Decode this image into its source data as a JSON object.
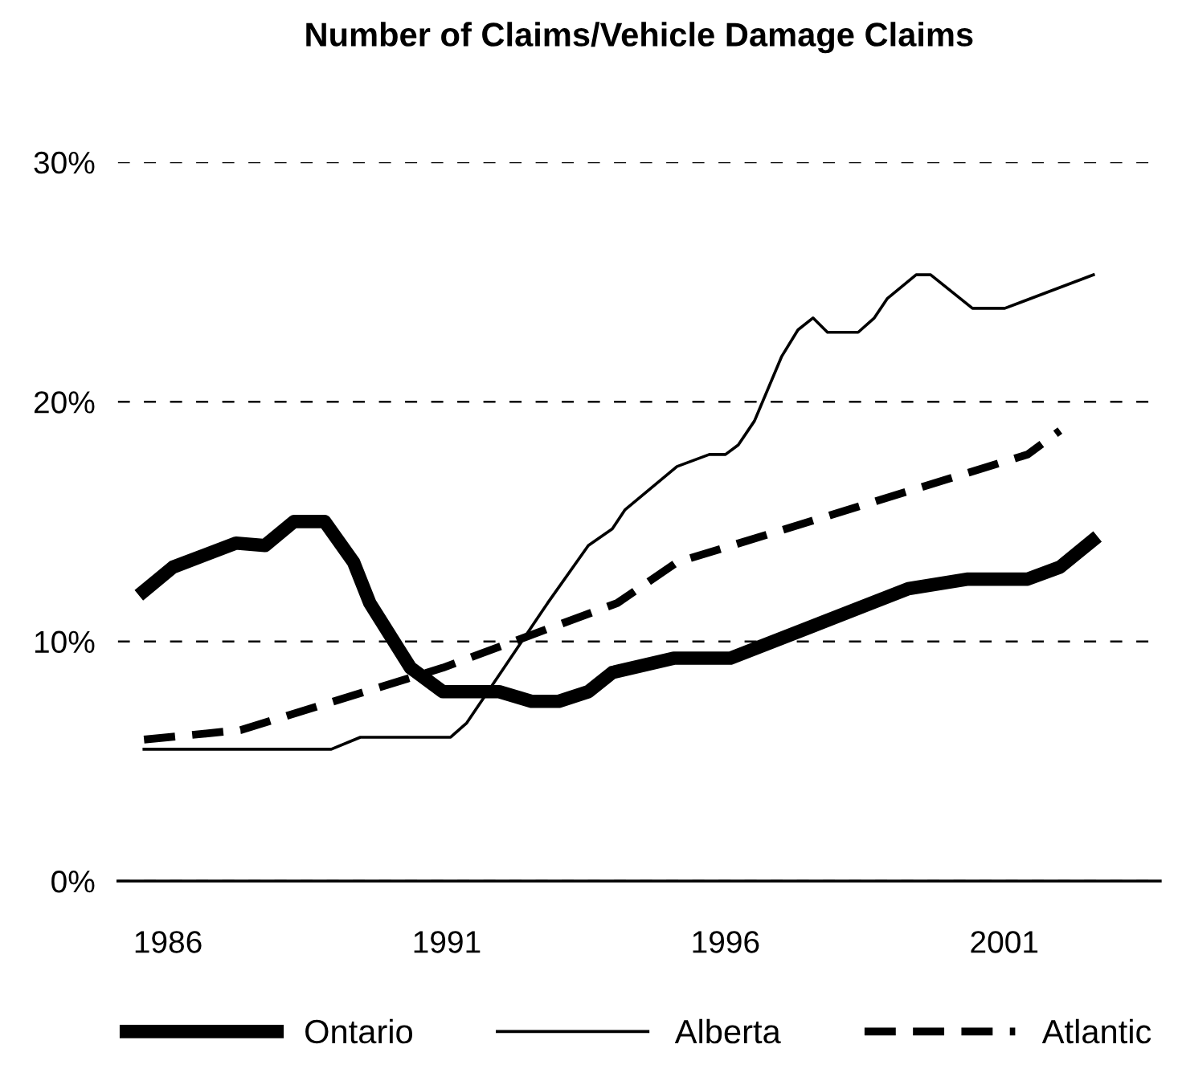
{
  "chart_data": {
    "type": "line",
    "title": "Number of Claims/Vehicle Damage Claims",
    "xlim": [
      1985.1,
      2003.8
    ],
    "xticks": [
      1986,
      1991,
      1996,
      2001
    ],
    "ylim": [
      0,
      30
    ],
    "yticks": [
      {
        "value": 0,
        "label": "0%"
      },
      {
        "value": 10,
        "label": "10%"
      },
      {
        "value": 20,
        "label": "20%"
      },
      {
        "value": 30,
        "label": "30%"
      }
    ],
    "grid": "y",
    "legend": "bottom",
    "series": [
      {
        "name": "Ontario",
        "color": "#000000",
        "line_style": "solid",
        "x": [
          1985.57,
          1986.09,
          1987.22,
          1987.74,
          1988.26,
          1988.81,
          1989.33,
          1989.62,
          1990.35,
          1990.93,
          1991.94,
          1992.52,
          1993.01,
          1993.54,
          1993.97,
          1995.07,
          1996.09,
          1999.28,
          2000.35,
          2001.42,
          2002.0,
          2002.58
        ],
        "values": [
          12.1,
          13.1,
          14.1,
          14.0,
          15.0,
          15.0,
          13.3,
          11.6,
          8.9,
          7.9,
          7.9,
          7.5,
          7.5,
          7.9,
          8.7,
          9.3,
          9.3,
          12.2,
          12.6,
          12.6,
          13.1,
          14.2
        ]
      },
      {
        "name": "Alberta",
        "color": "#000000",
        "line_style": "solid",
        "x": [
          1985.57,
          1988.93,
          1989.45,
          1991.07,
          1991.36,
          1991.94,
          1992.81,
          1993.54,
          1993.97,
          1994.2,
          1995.13,
          1995.71,
          1996.0,
          1996.23,
          1996.52,
          1997.01,
          1997.3,
          1997.57,
          1997.83,
          1998.38,
          1998.67,
          1998.9,
          1999.42,
          1999.68,
          2000.43,
          2001.01,
          2002.6
        ],
        "values": [
          5.5,
          5.5,
          6.0,
          6.0,
          6.6,
          8.6,
          11.6,
          14.0,
          14.7,
          15.5,
          17.3,
          17.8,
          17.8,
          18.2,
          19.2,
          21.9,
          23.0,
          23.5,
          22.9,
          22.9,
          23.5,
          24.3,
          25.3,
          25.3,
          23.9,
          23.9,
          25.3
        ]
      },
      {
        "name": "Atlantic",
        "color": "#000000",
        "line_style": "dashed",
        "x": [
          1985.57,
          1987.3,
          1990.93,
          1994.06,
          1995.13,
          2001.42,
          2002.0
        ],
        "values": [
          5.9,
          6.3,
          8.9,
          11.6,
          13.3,
          17.8,
          18.8
        ]
      }
    ]
  }
}
